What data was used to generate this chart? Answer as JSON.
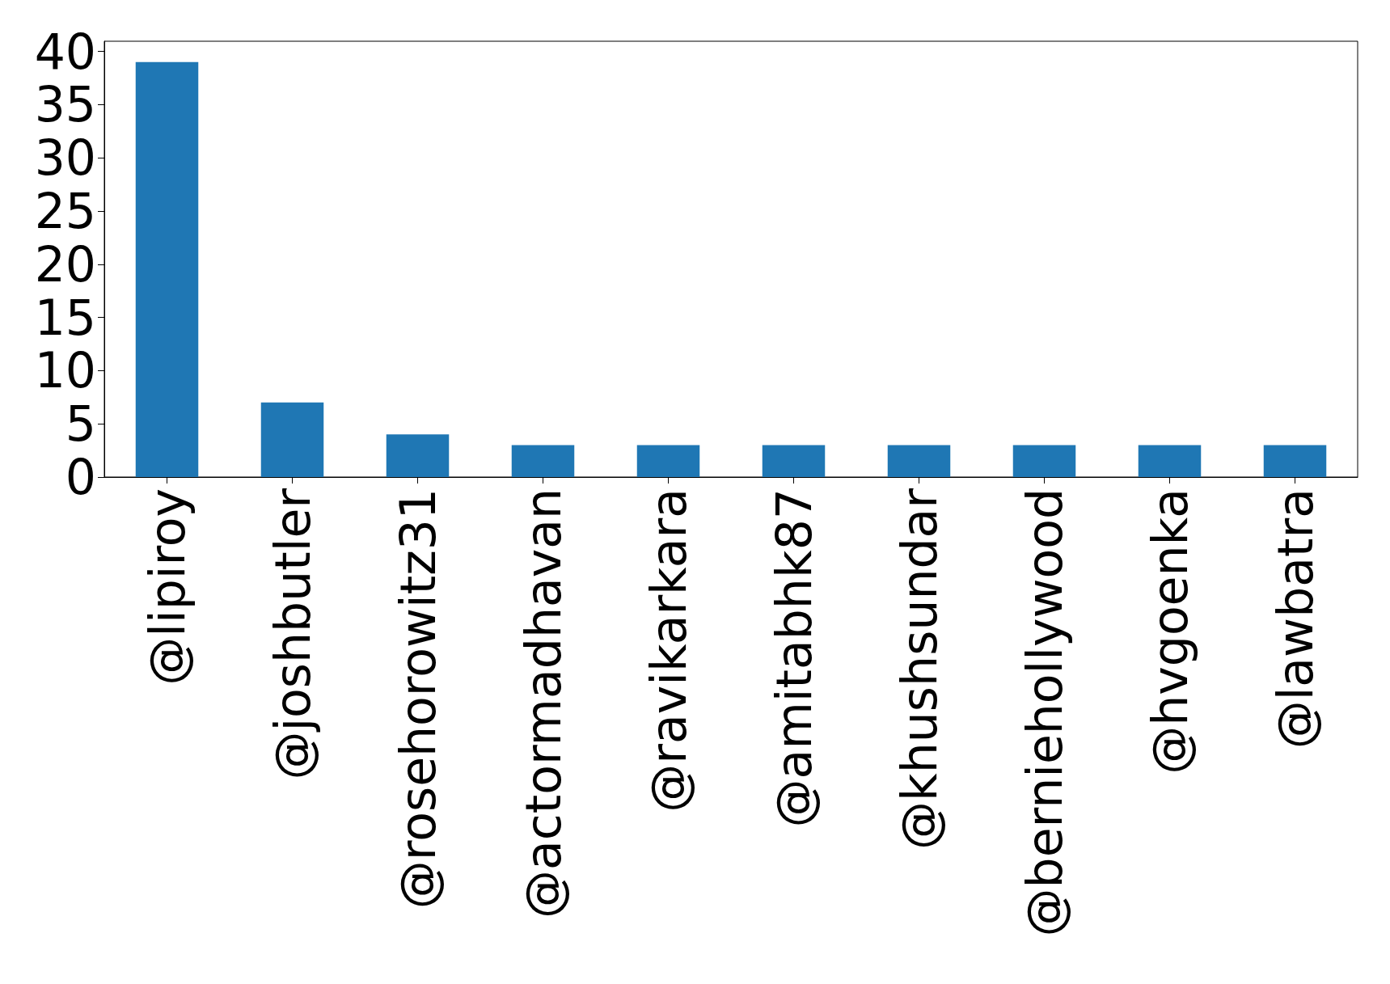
{
  "chart_data": {
    "type": "bar",
    "categories": [
      "@lipiroy",
      "@joshbutler",
      "@rosehorowitz31",
      "@actormadhavan",
      "@ravikarkara",
      "@amitabhk87",
      "@khushsundar",
      "@berniehollywood",
      "@hvgoenka",
      "@lawbatra"
    ],
    "values": [
      39,
      7,
      4,
      3,
      3,
      3,
      3,
      3,
      3,
      3
    ],
    "color": "#1f77b4",
    "ylim": [
      0,
      40.95
    ],
    "yticks": [
      0,
      5,
      10,
      15,
      20,
      25,
      30,
      35,
      40
    ]
  }
}
